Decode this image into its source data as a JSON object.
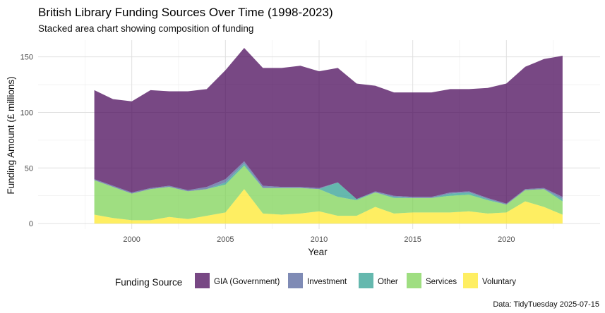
{
  "chart_data": {
    "type": "area",
    "stacked": true,
    "title": "British Library Funding Sources Over Time (1998-2023)",
    "subtitle": "Stacked area chart showing composition of funding",
    "xlabel": "Year",
    "ylabel": "Funding Amount (£ millions)",
    "caption": "Data: TidyTuesday 2025-07-15",
    "xlim": [
      1995,
      2025
    ],
    "ylim": [
      -5,
      165
    ],
    "x_ticks": [
      2000,
      2005,
      2010,
      2015,
      2020
    ],
    "y_ticks": [
      0,
      50,
      100,
      150
    ],
    "grid": true,
    "legend_title": "Funding Source",
    "legend_position": "bottom",
    "x": [
      1998,
      1999,
      2000,
      2001,
      2002,
      2003,
      2004,
      2005,
      2006,
      2007,
      2008,
      2009,
      2010,
      2011,
      2012,
      2013,
      2014,
      2015,
      2016,
      2017,
      2018,
      2019,
      2020,
      2021,
      2022,
      2023
    ],
    "series": [
      {
        "name": "Voluntary",
        "color": "#FDE725",
        "values": [
          8,
          5,
          3,
          3,
          6,
          4,
          7,
          10,
          31,
          9,
          8,
          9,
          11,
          7,
          7,
          15,
          9,
          10,
          10,
          10,
          11,
          9,
          10,
          20,
          15,
          8
        ]
      },
      {
        "name": "Services",
        "color": "#7AD151",
        "values": [
          31,
          28,
          24,
          28,
          27,
          25,
          24,
          25,
          21,
          23,
          24,
          23,
          20,
          17,
          14,
          13,
          14,
          13,
          13,
          15,
          15,
          12,
          7,
          10,
          16,
          12
        ]
      },
      {
        "name": "Other",
        "color": "#2A9D8F",
        "values": [
          0,
          0,
          0,
          0,
          0,
          0,
          0,
          2,
          2,
          0,
          0,
          0,
          0,
          13,
          1,
          0,
          1,
          0,
          0,
          2,
          2,
          1,
          0,
          0,
          0,
          2
        ]
      },
      {
        "name": "Investment",
        "color": "#4E5E98",
        "values": [
          1,
          1,
          1,
          1,
          1,
          1,
          2,
          3,
          2,
          2,
          1,
          1,
          1,
          0,
          0,
          1,
          1,
          1,
          1,
          1,
          1,
          1,
          1,
          1,
          1,
          2
        ]
      },
      {
        "name": "GIA (Government)",
        "color": "#440154",
        "values": [
          80,
          78,
          82,
          88,
          85,
          89,
          88,
          98,
          102,
          106,
          107,
          109,
          105,
          103,
          104,
          95,
          93,
          94,
          94,
          93,
          92,
          99,
          108,
          110,
          116,
          127
        ]
      }
    ],
    "legend_order": [
      "GIA (Government)",
      "Investment",
      "Other",
      "Services",
      "Voluntary"
    ]
  }
}
